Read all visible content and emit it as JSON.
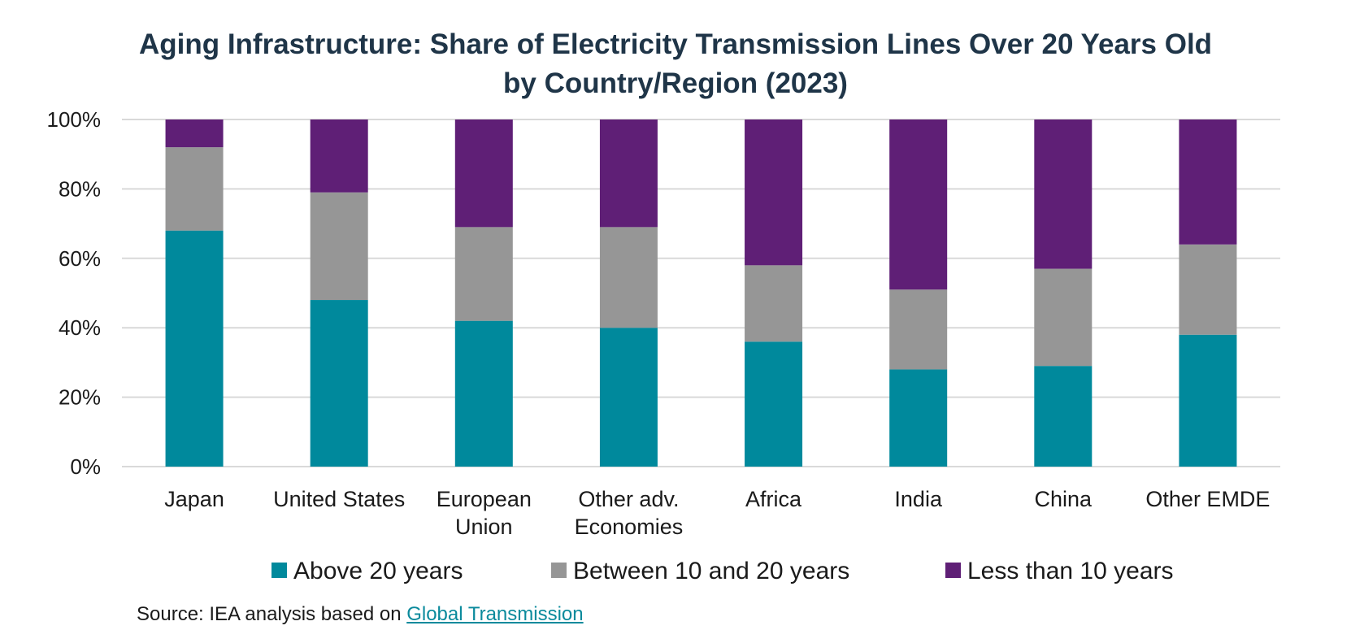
{
  "chart_data": {
    "type": "bar",
    "stacked": true,
    "title_lines": [
      "Aging Infrastructure: Share of Electricity Transmission Lines Over 20 Years Old",
      "by Country/Region (2023)"
    ],
    "categories": [
      "Japan",
      "United States",
      "European Union",
      "Other adv. Economies",
      "Africa",
      "India",
      "China",
      "Other EMDE"
    ],
    "category_label_lines": [
      [
        "Japan"
      ],
      [
        "United States"
      ],
      [
        "European",
        "Union"
      ],
      [
        "Other adv.",
        "Economies"
      ],
      [
        "Africa"
      ],
      [
        "India"
      ],
      [
        "China"
      ],
      [
        "Other EMDE"
      ]
    ],
    "series": [
      {
        "name": "Above 20 years",
        "color": "#00899c",
        "values": [
          68,
          48,
          42,
          40,
          36,
          28,
          29,
          38
        ]
      },
      {
        "name": "Between 10 and 20 years",
        "color": "#969696",
        "values": [
          24,
          31,
          27,
          29,
          22,
          23,
          28,
          26
        ]
      },
      {
        "name": "Less than 10 years",
        "color": "#5f1f76",
        "values": [
          8,
          21,
          31,
          31,
          42,
          49,
          43,
          36
        ]
      }
    ],
    "ylim": [
      0,
      100
    ],
    "yticks": [
      "0%",
      "20%",
      "40%",
      "60%",
      "80%",
      "100%"
    ],
    "grid": true,
    "legend_position": "bottom"
  },
  "source": {
    "prefix": "Source: IEA analysis based on ",
    "link_text": "Global Transmission"
  },
  "colors": {
    "title": "#1f3548",
    "text": "#1a1a1a",
    "grid": "#d9d9d9",
    "link": "#0a8a9c"
  }
}
